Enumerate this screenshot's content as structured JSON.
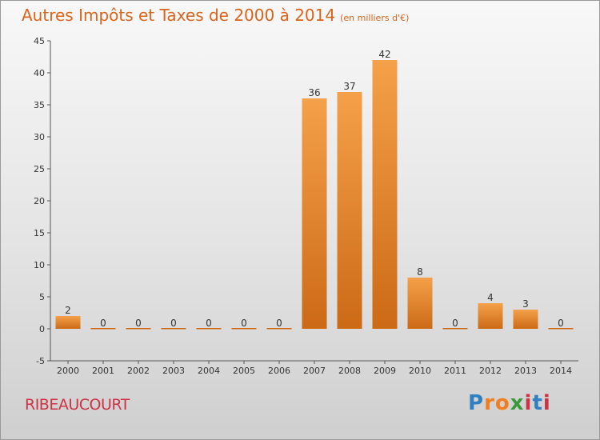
{
  "header": {
    "title": "Autres Impôts et Taxes de 2000 à 2014",
    "subtitle": "(en milliers d'€)"
  },
  "footer": {
    "commune": "RIBEAUCOURT",
    "logo": "Proxiti"
  },
  "colors": {
    "title": "#d9641c",
    "commune": "#cc3344",
    "bar_light": "#f5a04a",
    "bar_dark": "#cc6a16",
    "logo_letters": [
      "#2f7fc1",
      "#f07d1e",
      "#f07d1e",
      "#3a9a3a",
      "#cc3344",
      "#2f7fc1",
      "#cc3344"
    ]
  },
  "chart_data": {
    "type": "bar",
    "title": "Autres Impôts et Taxes de 2000 à 2014",
    "subtitle": "(en milliers d'€)",
    "categories": [
      "2000",
      "2001",
      "2002",
      "2003",
      "2004",
      "2005",
      "2006",
      "2007",
      "2008",
      "2009",
      "2010",
      "2011",
      "2012",
      "2013",
      "2014"
    ],
    "values": [
      2,
      0,
      0,
      0,
      0,
      0,
      0,
      36,
      37,
      42,
      8,
      0,
      4,
      3,
      0
    ],
    "data_labels": [
      "2",
      "0",
      "0",
      "0",
      "0",
      "0",
      "0",
      "36",
      "37",
      "42",
      "8",
      "0",
      "4",
      "3",
      "0"
    ],
    "ylim": [
      -5,
      45
    ],
    "yticks": [
      -5,
      0,
      5,
      10,
      15,
      20,
      25,
      30,
      35,
      40,
      45
    ],
    "ytick_labels": [
      "-5",
      "0",
      "5",
      "10",
      "15",
      "20",
      "25",
      "30",
      "35",
      "40",
      "45"
    ],
    "grid": false,
    "legend": "none"
  }
}
